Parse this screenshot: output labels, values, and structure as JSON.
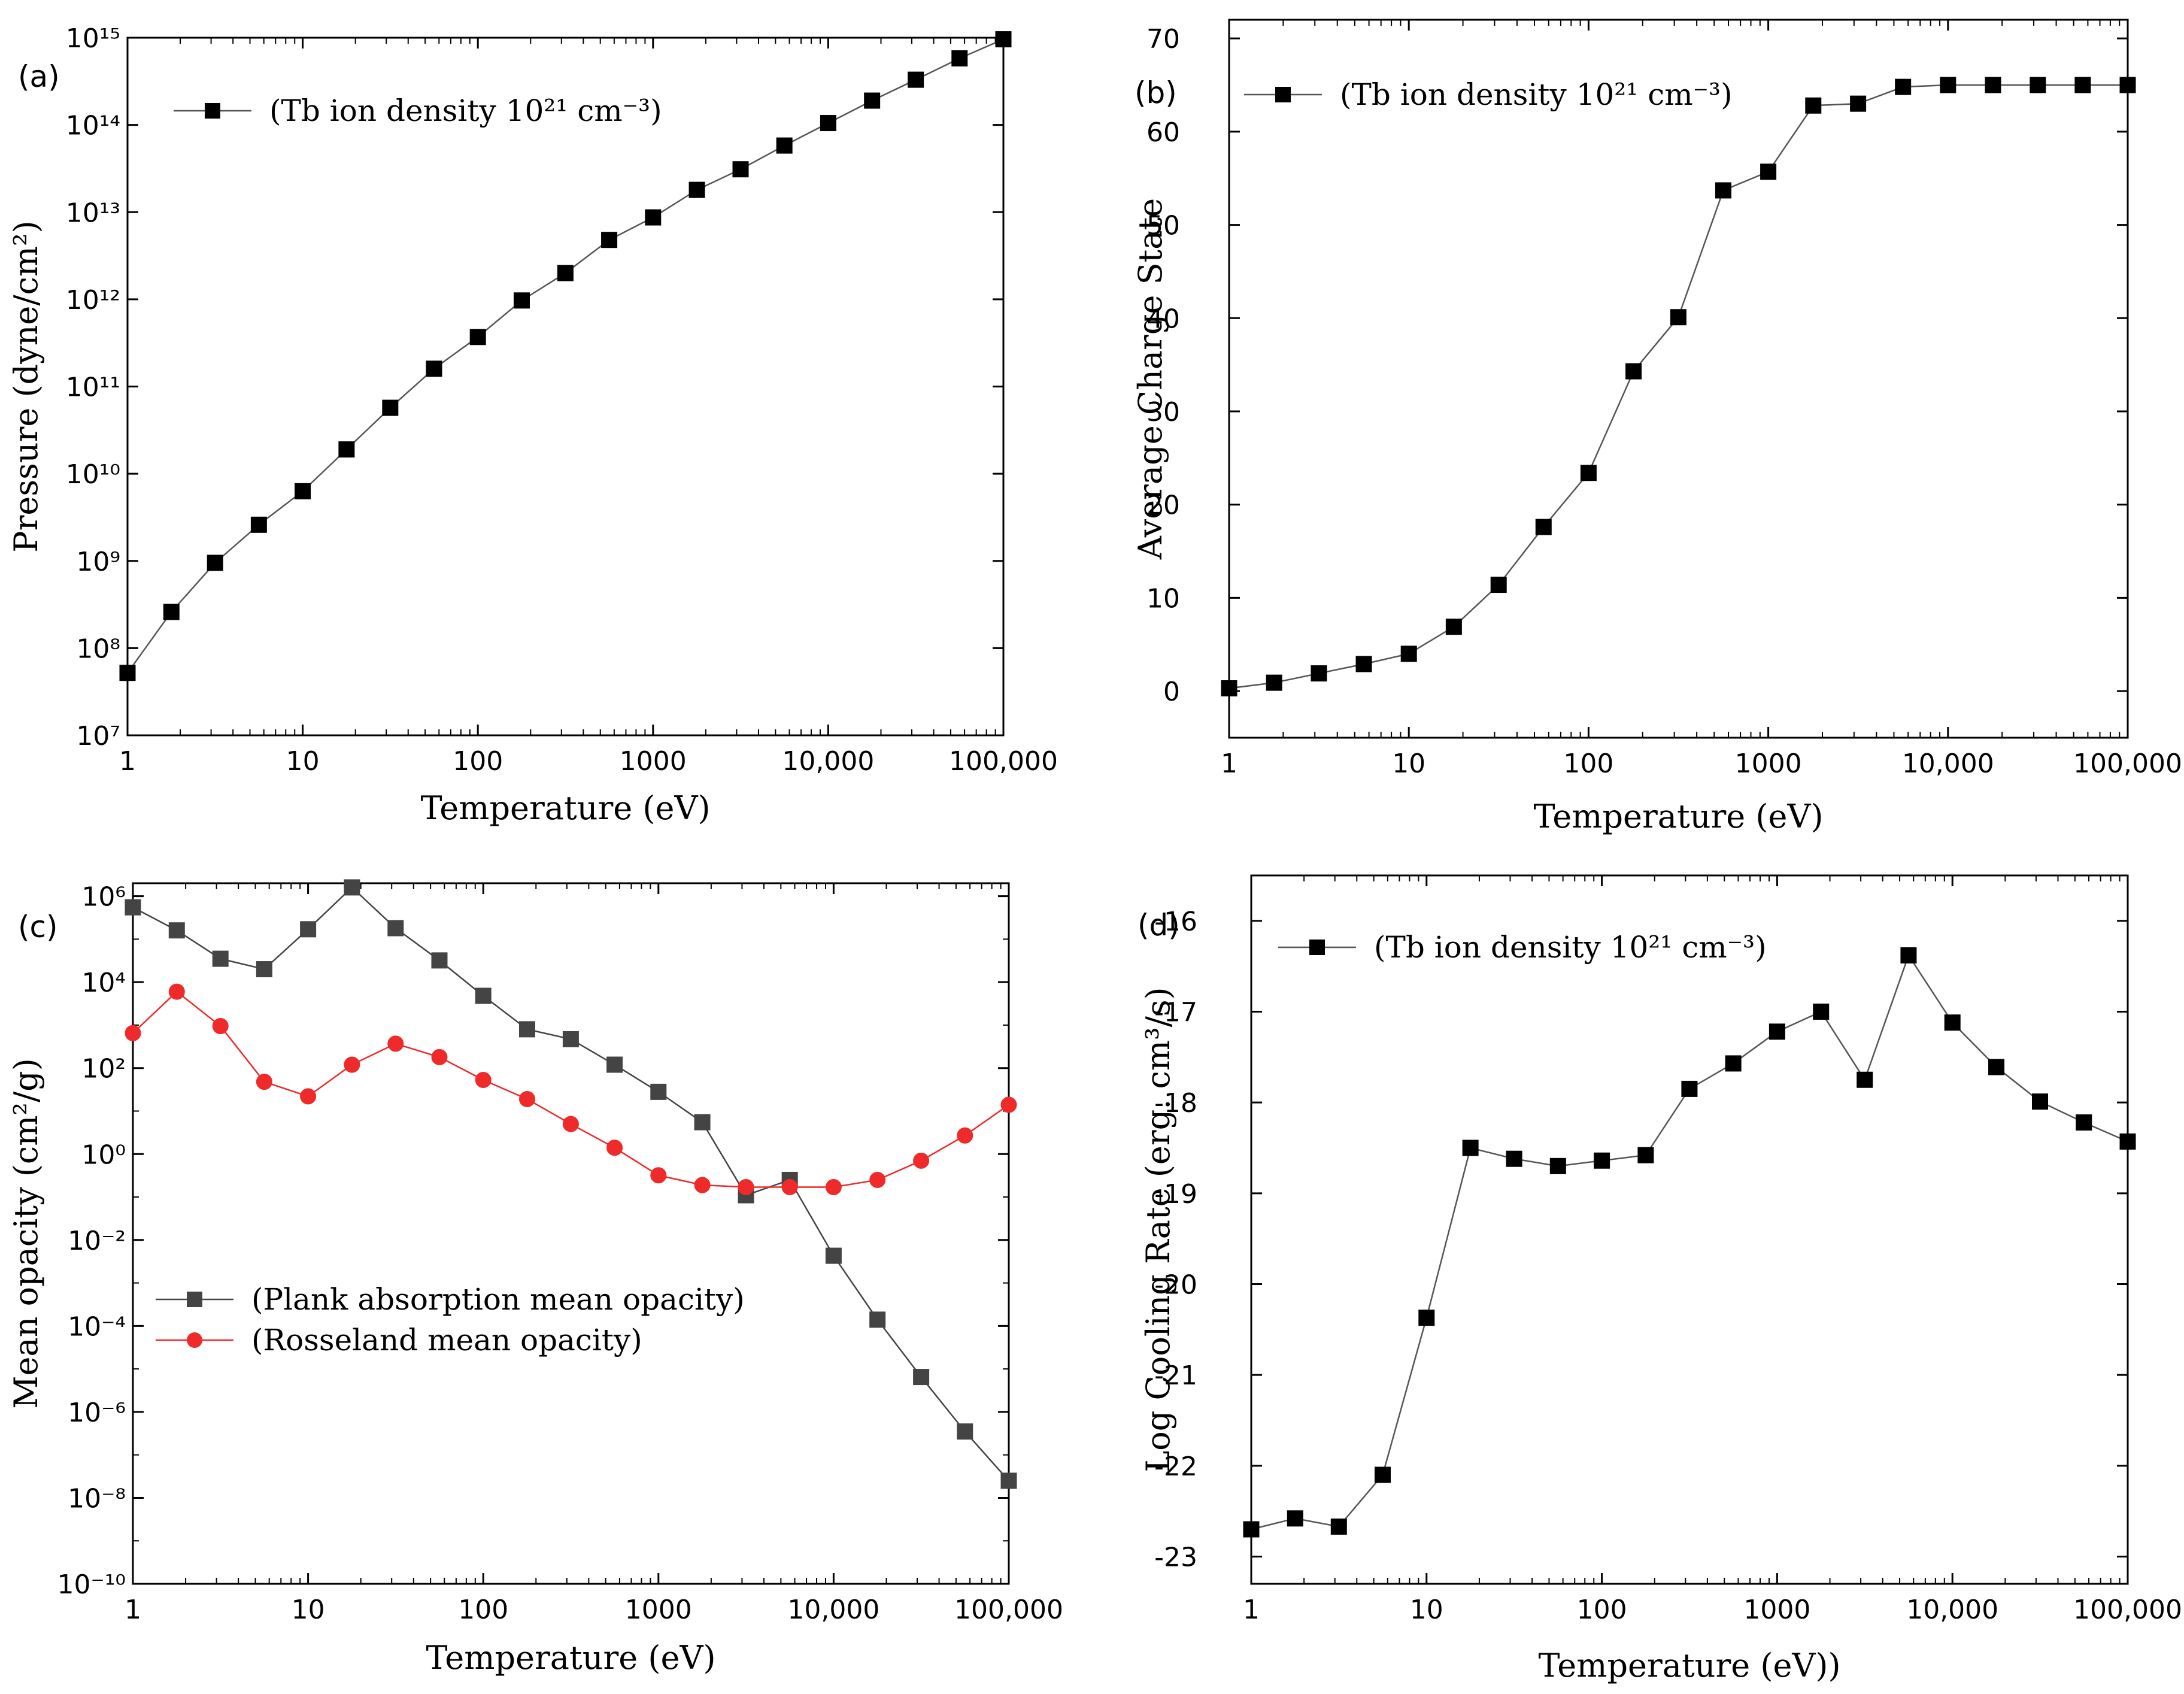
{
  "chart_data": [
    {
      "panel": "(a)",
      "type": "line",
      "xscale": "log",
      "yscale": "log",
      "xlabel": "Temperature (eV)",
      "ylabel": "Pressure (dyne/cm²)",
      "xlim": [
        1,
        100000
      ],
      "ylim": [
        10000000.0,
        1000000000000000.0
      ],
      "xticks": [
        "1",
        "10",
        "100",
        "1000",
        "10,000",
        "100,000"
      ],
      "yticks": [
        "10⁷",
        "10⁸",
        "10⁹",
        "10¹⁰",
        "10¹¹",
        "10¹²",
        "10¹³",
        "10¹⁴",
        "10¹⁵"
      ],
      "legend_position": "top-left",
      "series": [
        {
          "name": "(Tb ion density 10²¹ cm⁻³)",
          "marker": "square",
          "color": "#000000",
          "x": [
            1,
            1.78,
            3.16,
            5.62,
            10,
            17.8,
            31.6,
            56.2,
            100,
            178,
            316,
            562,
            1000,
            1780,
            3160,
            5620,
            10000,
            17800,
            31600,
            56200,
            100000
          ],
          "y": [
            52000000.0,
            260000000.0,
            950000000.0,
            2600000000.0,
            6300000000.0,
            19000000000.0,
            57000000000.0,
            160000000000.0,
            370000000000.0,
            970000000000.0,
            2000000000000.0,
            4800000000000.0,
            8700000000000.0,
            18000000000000.0,
            31000000000000.0,
            58000000000000.0,
            105000000000000.0,
            190000000000000.0,
            330000000000000.0,
            580000000000000.0,
            960000000000000.0
          ]
        }
      ]
    },
    {
      "panel": "(b)",
      "type": "line",
      "xscale": "log",
      "yscale": "linear",
      "xlabel": "Temperature (eV)",
      "ylabel": "Average Charge State",
      "xlim": [
        1,
        100000
      ],
      "ylim": [
        -5,
        72
      ],
      "xticks": [
        "1",
        "10",
        "100",
        "1000",
        "10,000",
        "100,000"
      ],
      "yticks": [
        "0",
        "10",
        "20",
        "30",
        "40",
        "50",
        "60",
        "70"
      ],
      "legend_position": "top-left",
      "series": [
        {
          "name": "(Tb ion density 10²¹ cm⁻³)",
          "marker": "square",
          "color": "#000000",
          "x": [
            1,
            1.78,
            3.16,
            5.62,
            10,
            17.8,
            31.6,
            56.2,
            100,
            178,
            316,
            562,
            1000,
            1780,
            3160,
            5620,
            10000,
            17800,
            31600,
            56200,
            100000
          ],
          "y": [
            0.3,
            0.9,
            1.9,
            2.9,
            4.0,
            6.9,
            11.4,
            17.6,
            23.4,
            34.3,
            40.1,
            53.7,
            55.7,
            62.8,
            63.0,
            64.8,
            65.0,
            65.0,
            65.0,
            65.0,
            65.0
          ]
        }
      ]
    },
    {
      "panel": "(c)",
      "type": "line",
      "xscale": "log",
      "yscale": "log",
      "xlabel": "Temperature  (eV)",
      "ylabel": "Mean opacity (cm²/g)",
      "xlim": [
        1,
        100000
      ],
      "ylim": [
        1e-10,
        2000000.0
      ],
      "xticks": [
        "1",
        "10",
        "100",
        "1000",
        "10,000",
        "100,000"
      ],
      "yticks": [
        "10⁻¹⁰",
        "10⁻⁸",
        "10⁻⁶",
        "10⁻⁴",
        "10⁻²",
        "10⁰",
        "10²",
        "10⁴",
        "10⁶"
      ],
      "legend_position": "lower-left",
      "series": [
        {
          "name": "(Plank absorption mean opacity)",
          "marker": "square",
          "color": "#444444",
          "x": [
            1,
            1.78,
            3.16,
            5.62,
            10,
            17.8,
            31.6,
            56.2,
            100,
            178,
            316,
            562,
            1000,
            1780,
            3160,
            5620,
            10000,
            17800,
            31600,
            56200,
            100000
          ],
          "y": [
            550000.0,
            160000.0,
            35000.0,
            20000.0,
            170000.0,
            1600000.0,
            180000.0,
            32000.0,
            4800.0,
            800.0,
            470.0,
            120.0,
            28.0,
            5.5,
            0.11,
            0.25,
            0.0043,
            0.00014,
            6.5e-06,
            3.5e-07,
            2.5e-08
          ]
        },
        {
          "name": "(Rosseland mean opacity)",
          "marker": "circle",
          "color": "#ee2a2a",
          "x": [
            1,
            1.78,
            3.16,
            5.62,
            10,
            17.8,
            31.6,
            56.2,
            100,
            178,
            316,
            562,
            1000,
            1780,
            3160,
            5620,
            10000,
            17800,
            31600,
            56200,
            100000
          ],
          "y": [
            650.0,
            6000.0,
            950.0,
            48.0,
            22.0,
            120.0,
            370.0,
            180.0,
            53.0,
            19.0,
            5.0,
            1.4,
            0.32,
            0.19,
            0.17,
            0.17,
            0.17,
            0.25,
            0.7,
            2.7,
            14
          ]
        }
      ]
    },
    {
      "panel": "(d)",
      "type": "line",
      "xscale": "log",
      "yscale": "linear",
      "xlabel": "Temperature (eV))",
      "ylabel": "Log Cooling Rate (erg. cm³/s)",
      "xlim": [
        1,
        100000
      ],
      "ylim": [
        -23.3,
        -15.5
      ],
      "xticks": [
        "1",
        "10",
        "100",
        "1000",
        "10,000",
        "100,000"
      ],
      "yticks": [
        "-23",
        "-22",
        "-21",
        "-20",
        "-19",
        "-18",
        "-17",
        "-16"
      ],
      "legend_position": "top-left",
      "series": [
        {
          "name": "(Tb ion density 10²¹ cm⁻³)",
          "marker": "square",
          "color": "#000000",
          "x": [
            1,
            1.78,
            3.16,
            5.62,
            10,
            17.8,
            31.6,
            56.2,
            100,
            178,
            316,
            562,
            1000,
            1780,
            3160,
            5620,
            10000,
            17800,
            31600,
            56200,
            100000
          ],
          "y": [
            -22.7,
            -22.58,
            -22.67,
            -22.1,
            -20.37,
            -18.5,
            -18.62,
            -18.7,
            -18.64,
            -18.58,
            -17.85,
            -17.57,
            -17.22,
            -17.0,
            -17.75,
            -16.38,
            -17.12,
            -17.61,
            -17.99,
            -18.22,
            -18.43
          ]
        }
      ]
    }
  ]
}
